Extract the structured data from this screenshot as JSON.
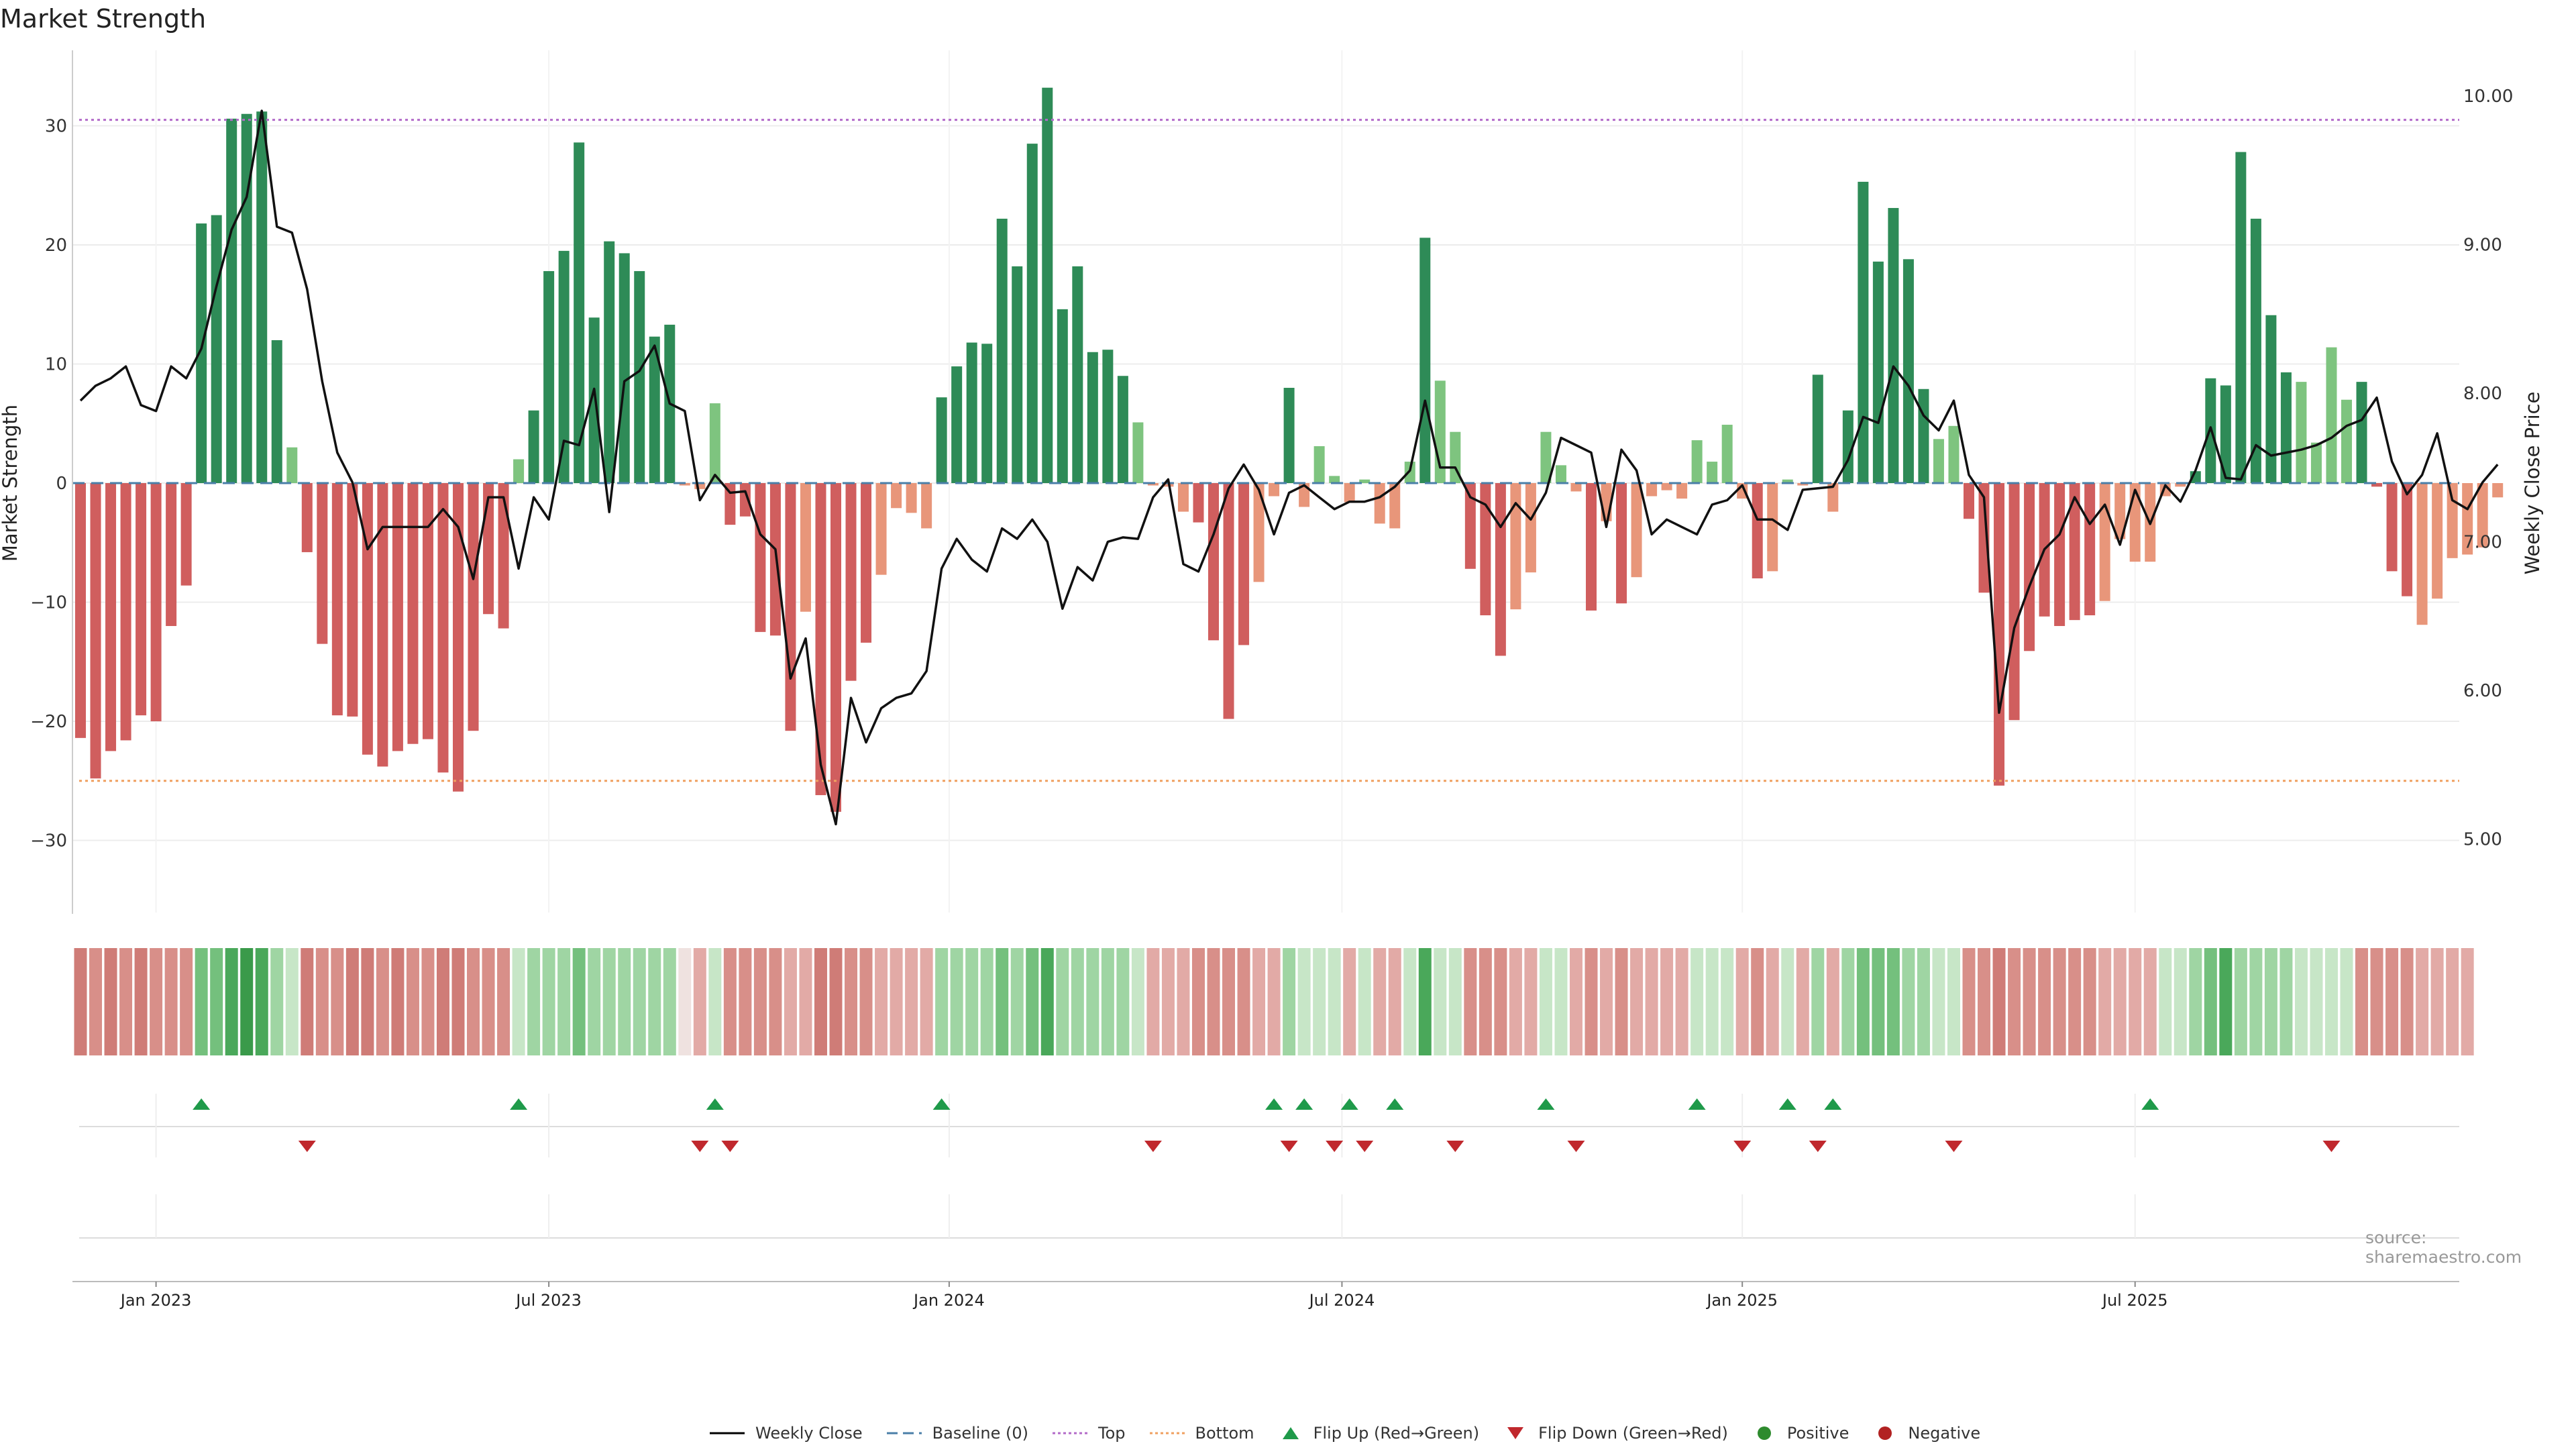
{
  "title": "Market Strength",
  "source": "source: sharemaestro.com",
  "chart_data": {
    "type": "bar",
    "title": "Market Strength",
    "ylabel_left": "Market Strength",
    "ylabel_right": "Weekly Close Price",
    "ylim_left": [
      -36,
      36
    ],
    "ylim_right": [
      4.5,
      10.4
    ],
    "yticks_left": [
      30,
      20,
      10,
      0,
      -10,
      -20,
      -30
    ],
    "ytick_labels_left": [
      "30",
      "20",
      "10",
      "0",
      "−10",
      "−20",
      "−30"
    ],
    "yticks_right": [
      10,
      9,
      8,
      7,
      6,
      5
    ],
    "ytick_labels_right": [
      "10.00",
      "9.00",
      "8.00",
      "7.00",
      "6.00",
      "5.00"
    ],
    "x_start_date": "2022-11-28",
    "x_ticks": [
      {
        "label": "Jan 2023",
        "week": 5
      },
      {
        "label": "Jul 2023",
        "week": 31
      },
      {
        "label": "Jan 2024",
        "week": 57.5
      },
      {
        "label": "Jul 2024",
        "week": 83.5
      },
      {
        "label": "Jan 2025",
        "week": 110
      },
      {
        "label": "Jul 2025",
        "week": 136
      }
    ],
    "top_line": 30.5,
    "bottom_line": -25,
    "strength": [
      -21.4,
      -24.8,
      -22.5,
      -21.6,
      -19.5,
      -20,
      -12,
      -8.6,
      21.8,
      22.5,
      30.6,
      31,
      31.2,
      12,
      3,
      -5.8,
      -13.5,
      -19.5,
      -19.6,
      -22.8,
      -23.8,
      -22.5,
      -21.9,
      -21.5,
      -24.3,
      -25.9,
      -20.8,
      -11,
      -12.2,
      2,
      6.1,
      17.8,
      19.5,
      28.6,
      13.9,
      20.3,
      19.3,
      17.8,
      12.3,
      13.3,
      -0.2,
      -0.5,
      6.7,
      -3.5,
      -2.8,
      -12.5,
      -12.8,
      -20.8,
      -10.8,
      -26.2,
      -27.6,
      -16.6,
      -13.4,
      -7.7,
      -2.1,
      -2.5,
      -3.8,
      7.2,
      9.8,
      11.8,
      11.7,
      22.2,
      18.2,
      28.5,
      33.2,
      14.6,
      18.2,
      11,
      11.2,
      9,
      5.1,
      -0.2,
      -0.3,
      -2.4,
      -3.3,
      -13.2,
      -19.8,
      -13.6,
      -8.3,
      -1.1,
      8,
      -2,
      3.1,
      0.6,
      -1.6,
      0.3,
      -3.4,
      -3.8,
      1.8,
      20.6,
      8.6,
      4.3,
      -7.2,
      -11.1,
      -14.5,
      -10.6,
      -7.5,
      4.3,
      1.5,
      -0.7,
      -10.7,
      -3.2,
      -10.1,
      -7.9,
      -1.1,
      -0.6,
      -1.3,
      3.6,
      1.8,
      4.9,
      -1.3,
      -8,
      -7.4,
      0.3,
      -0.2,
      9.1,
      -2.4,
      6.1,
      25.3,
      18.6,
      23.1,
      18.8,
      7.9,
      3.7,
      4.8,
      -3,
      -9.2,
      -25.4,
      -19.9,
      -14.1,
      -11.2,
      -12,
      -11.5,
      -11.1,
      -9.9,
      -4.7,
      -6.6,
      -6.6,
      -1.1,
      -0.3,
      1,
      8.8,
      8.2,
      27.8,
      22.2,
      14.1,
      9.3,
      8.5,
      3.4,
      11.4,
      7,
      8.5,
      -0.3,
      -7.4,
      -9.5,
      -11.9,
      -9.7,
      -6.3,
      -6,
      -5.4,
      -1.2
    ],
    "color_levels": [
      -3,
      -2,
      -3,
      -2,
      -3,
      -2,
      -2,
      -2,
      3,
      3,
      4,
      5,
      4,
      2,
      1,
      -3,
      -2,
      -2,
      -3,
      -3,
      -2,
      -3,
      -2,
      -2,
      -3,
      -3,
      -2,
      -2,
      -2,
      1,
      2,
      2,
      2,
      3,
      2,
      2,
      2,
      2,
      2,
      2,
      0,
      -1,
      1,
      -2,
      -2,
      -2,
      -2,
      -1,
      -1,
      -3,
      -3,
      -2,
      -2,
      -1,
      -1,
      -1,
      -1,
      2,
      2,
      2,
      2,
      3,
      2,
      3,
      4,
      2,
      2,
      2,
      2,
      2,
      1,
      -1,
      -1,
      -1,
      -2,
      -2,
      -2,
      -2,
      -1,
      -1,
      2,
      1,
      1,
      1,
      -1,
      1,
      -1,
      -1,
      1,
      4,
      1,
      1,
      -2,
      -2,
      -2,
      -1,
      -1,
      1,
      1,
      -1,
      -2,
      -1,
      -2,
      -1,
      -1,
      -1,
      -1,
      1,
      1,
      1,
      -1,
      -2,
      -1,
      1,
      -1,
      2,
      -1,
      2,
      3,
      3,
      3,
      2,
      2,
      1,
      1,
      -2,
      -2,
      -3,
      -2,
      -2,
      -2,
      -2,
      -2,
      -2,
      -1,
      -1,
      -1,
      -1,
      1,
      1,
      2,
      3,
      4,
      2,
      2,
      2,
      2,
      1,
      1,
      1,
      1,
      -2,
      -2,
      -2,
      -2,
      -1,
      -1,
      -1,
      -1
    ],
    "weekly_close": [
      7.95,
      8.05,
      8.1,
      8.18,
      7.92,
      7.88,
      8.18,
      8.1,
      8.3,
      8.72,
      9.1,
      9.32,
      9.9,
      9.12,
      9.08,
      8.7,
      8.08,
      7.6,
      7.4,
      6.95,
      7.1,
      7.1,
      7.1,
      7.1,
      7.22,
      7.1,
      6.75,
      7.3,
      7.3,
      6.82,
      7.3,
      7.15,
      7.68,
      7.65,
      8.03,
      7.2,
      8.08,
      8.15,
      8.32,
      7.93,
      7.88,
      7.28,
      7.45,
      7.33,
      7.34,
      7.05,
      6.95,
      6.08,
      6.35,
      5.5,
      5.1,
      5.95,
      5.65,
      5.88,
      5.95,
      5.98,
      6.13,
      6.82,
      7.02,
      6.88,
      6.8,
      7.09,
      7.02,
      7.15,
      7.0,
      6.55,
      6.83,
      6.74,
      7.0,
      7.03,
      7.02,
      7.3,
      7.42,
      6.85,
      6.8,
      7.05,
      7.36,
      7.52,
      7.35,
      7.05,
      7.33,
      7.38,
      7.3,
      7.22,
      7.27,
      7.27,
      7.3,
      7.37,
      7.48,
      7.95,
      7.5,
      7.5,
      7.3,
      7.25,
      7.1,
      7.26,
      7.15,
      7.33,
      7.7,
      7.65,
      7.6,
      7.1,
      7.62,
      7.48,
      7.05,
      7.15,
      7.1,
      7.05,
      7.25,
      7.28,
      7.38,
      7.15,
      7.15,
      7.08,
      7.35,
      7.36,
      7.37,
      7.55,
      7.84,
      7.8,
      8.18,
      8.05,
      7.85,
      7.75,
      7.95,
      7.45,
      7.3,
      5.85,
      6.42,
      6.7,
      6.95,
      7.05,
      7.3,
      7.12,
      7.25,
      6.98,
      7.35,
      7.12,
      7.38,
      7.27,
      7.48,
      7.77,
      7.43,
      7.42,
      7.65,
      7.58,
      7.6,
      7.62,
      7.65,
      7.7,
      7.78,
      7.82,
      7.97,
      7.54,
      7.32,
      7.45,
      7.73,
      7.28,
      7.22,
      7.4,
      7.52
    ],
    "flip_up_weeks": [
      8,
      29,
      42,
      57,
      79,
      81,
      84,
      87,
      97,
      107,
      113,
      116,
      137
    ],
    "flip_down_weeks": [
      15,
      41,
      43,
      71,
      80,
      83,
      85,
      91,
      99,
      110,
      115,
      124,
      149
    ],
    "legend": [
      "Weekly Close",
      "Baseline (0)",
      "Top",
      "Bottom",
      "Flip Up (Red→Green)",
      "Flip Down (Green→Red)",
      "Positive",
      "Negative"
    ]
  },
  "colors": {
    "pos_strong": "#2e8b57",
    "pos_light": "#7ec47f",
    "neg_strong": "#d05e5e",
    "neg_light": "#e8967a",
    "top_line": "#b36bc9",
    "bottom_line": "#f0a060",
    "baseline": "#4a7fa8",
    "flip_up": "#1f9a4a",
    "flip_down": "#c0282d",
    "positive_dot": "#2e8b2e",
    "negative_dot": "#b22222"
  }
}
